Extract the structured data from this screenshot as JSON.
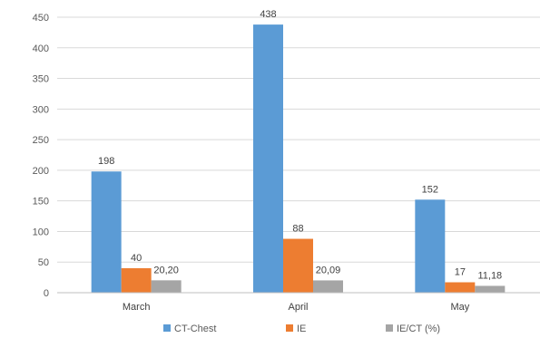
{
  "chart_data": {
    "type": "bar",
    "title": "",
    "xlabel": "",
    "ylabel": "",
    "categories": [
      "March",
      "April",
      "May"
    ],
    "series": [
      {
        "name": "CT-Chest",
        "values": [
          198,
          438,
          152
        ],
        "labels": [
          "198",
          "438",
          "152"
        ],
        "color": "#5b9bd5"
      },
      {
        "name": "IE",
        "values": [
          40,
          88,
          17
        ],
        "labels": [
          "40",
          "88",
          "17"
        ],
        "color": "#ed7d31"
      },
      {
        "name": "IE/CT (%)",
        "values": [
          20.2,
          20.09,
          11.18
        ],
        "labels": [
          "20,20",
          "20,09",
          "11,18"
        ],
        "color": "#a5a5a5"
      }
    ],
    "ylim": [
      0,
      450
    ],
    "yticks": [
      0,
      50,
      100,
      150,
      200,
      250,
      300,
      350,
      400,
      450
    ],
    "grid": true,
    "legend": "bottom"
  }
}
